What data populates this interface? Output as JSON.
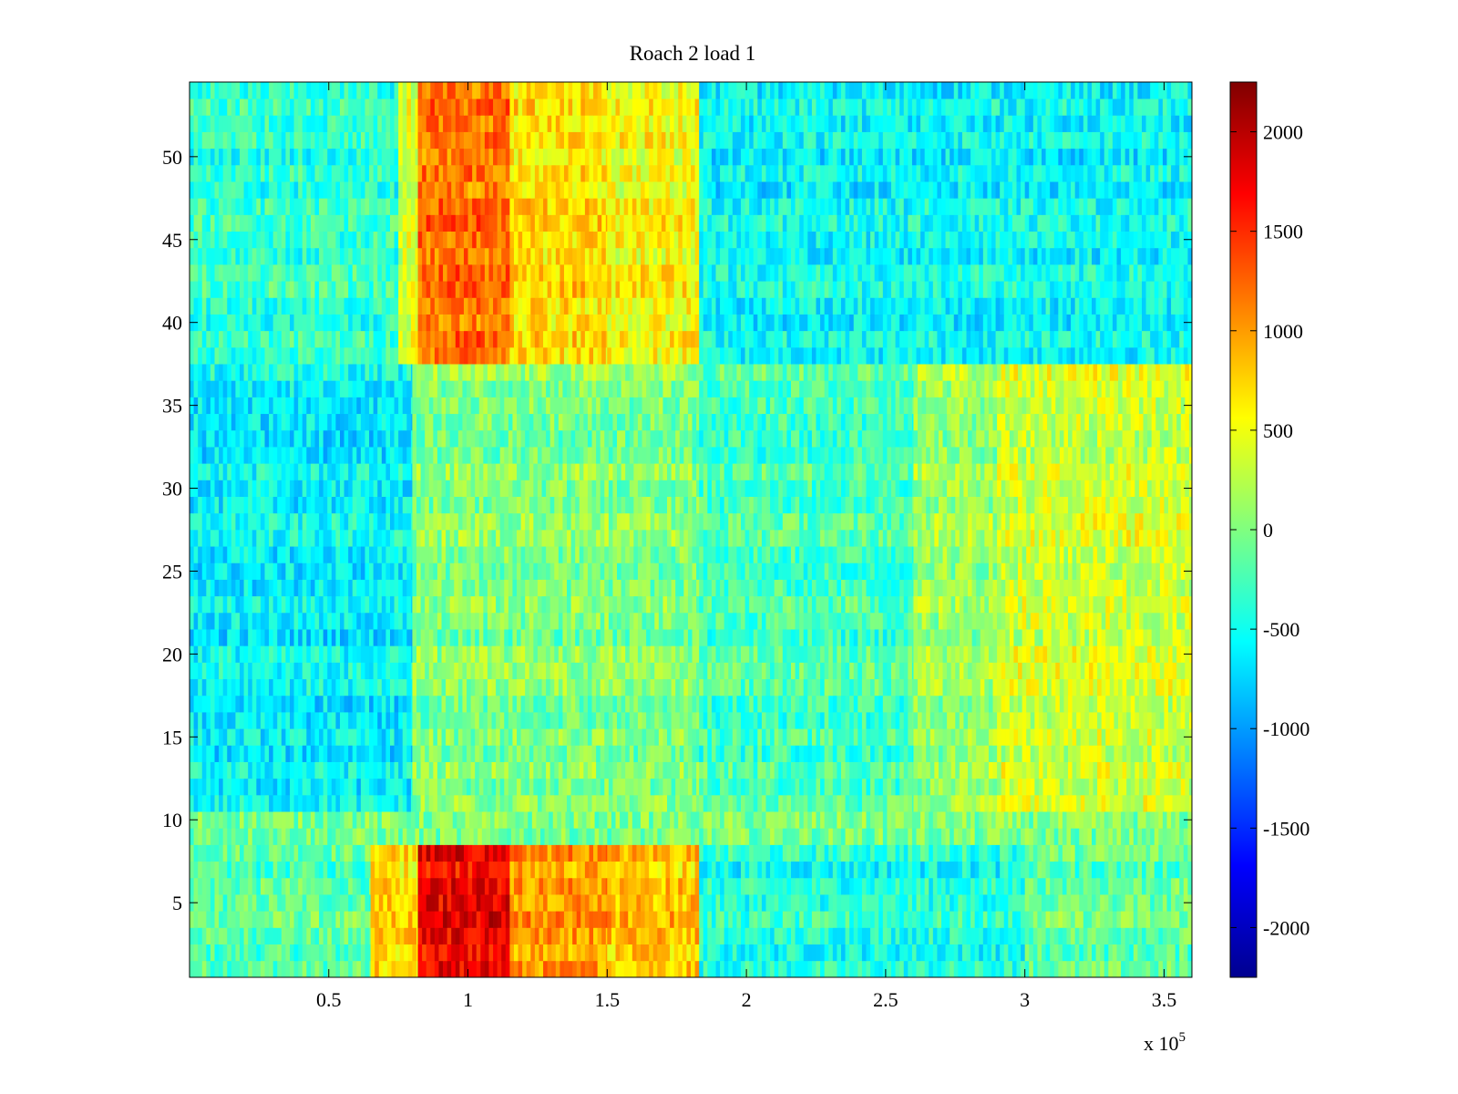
{
  "chart_data": {
    "type": "heatmap",
    "title": "Roach 2 load 1",
    "xlabel": "",
    "ylabel": "",
    "x_multiplier_text": "x 10",
    "x_multiplier_exponent": "5",
    "xlim": [
      0,
      360000
    ],
    "ylim": [
      0.5,
      54.5
    ],
    "x_ticks": [
      {
        "value": 50000,
        "label": "0.5"
      },
      {
        "value": 100000,
        "label": "1"
      },
      {
        "value": 150000,
        "label": "1.5"
      },
      {
        "value": 200000,
        "label": "2"
      },
      {
        "value": 250000,
        "label": "2.5"
      },
      {
        "value": 300000,
        "label": "3"
      },
      {
        "value": 350000,
        "label": "3.5"
      }
    ],
    "y_ticks": [
      {
        "value": 5,
        "label": "5"
      },
      {
        "value": 10,
        "label": "10"
      },
      {
        "value": 15,
        "label": "15"
      },
      {
        "value": 20,
        "label": "20"
      },
      {
        "value": 25,
        "label": "25"
      },
      {
        "value": 30,
        "label": "30"
      },
      {
        "value": 35,
        "label": "35"
      },
      {
        "value": 40,
        "label": "40"
      },
      {
        "value": 45,
        "label": "45"
      },
      {
        "value": 50,
        "label": "50"
      }
    ],
    "colorbar": {
      "colormap": "jet",
      "clim": [
        -2250,
        2250
      ],
      "ticks": [
        {
          "value": 2000,
          "label": "2000"
        },
        {
          "value": 1500,
          "label": "1500"
        },
        {
          "value": 1000,
          "label": "1000"
        },
        {
          "value": 500,
          "label": "500"
        },
        {
          "value": 0,
          "label": "0"
        },
        {
          "value": -500,
          "label": "-500"
        },
        {
          "value": -1000,
          "label": "-1000"
        },
        {
          "value": -1500,
          "label": "-1500"
        },
        {
          "value": -2000,
          "label": "-2000"
        }
      ]
    },
    "rows": 54,
    "grid": false,
    "regions": [
      {
        "y": [
          1,
          8
        ],
        "x": [
          0,
          65000
        ],
        "value": -200
      },
      {
        "y": [
          1,
          8
        ],
        "x": [
          65000,
          82000
        ],
        "value": 700
      },
      {
        "y": [
          1,
          8
        ],
        "x": [
          82000,
          115000
        ],
        "value": 1700
      },
      {
        "y": [
          1,
          8
        ],
        "x": [
          115000,
          150000
        ],
        "value": 1000
      },
      {
        "y": [
          1,
          8
        ],
        "x": [
          150000,
          183000
        ],
        "value": 800
      },
      {
        "y": [
          1,
          8
        ],
        "x": [
          183000,
          300000
        ],
        "value": -450
      },
      {
        "y": [
          1,
          8
        ],
        "x": [
          300000,
          360000
        ],
        "value": -150
      },
      {
        "y": [
          9,
          10
        ],
        "x": [
          0,
          360000
        ],
        "value": -100
      },
      {
        "y": [
          11,
          37
        ],
        "x": [
          0,
          80000
        ],
        "value": -600
      },
      {
        "y": [
          11,
          37
        ],
        "x": [
          80000,
          183000
        ],
        "value": 0
      },
      {
        "y": [
          11,
          37
        ],
        "x": [
          183000,
          260000
        ],
        "value": -250
      },
      {
        "y": [
          11,
          37
        ],
        "x": [
          260000,
          290000
        ],
        "value": 100
      },
      {
        "y": [
          11,
          37
        ],
        "x": [
          290000,
          360000
        ],
        "value": 350
      },
      {
        "y": [
          38,
          54
        ],
        "x": [
          0,
          75000
        ],
        "value": -350
      },
      {
        "y": [
          38,
          54
        ],
        "x": [
          75000,
          82000
        ],
        "value": 400
      },
      {
        "y": [
          38,
          54
        ],
        "x": [
          82000,
          115000
        ],
        "value": 1200
      },
      {
        "y": [
          38,
          54
        ],
        "x": [
          115000,
          150000
        ],
        "value": 700
      },
      {
        "y": [
          38,
          54
        ],
        "x": [
          150000,
          183000
        ],
        "value": 550
      },
      {
        "y": [
          38,
          54
        ],
        "x": [
          183000,
          360000
        ],
        "value": -550
      }
    ]
  }
}
